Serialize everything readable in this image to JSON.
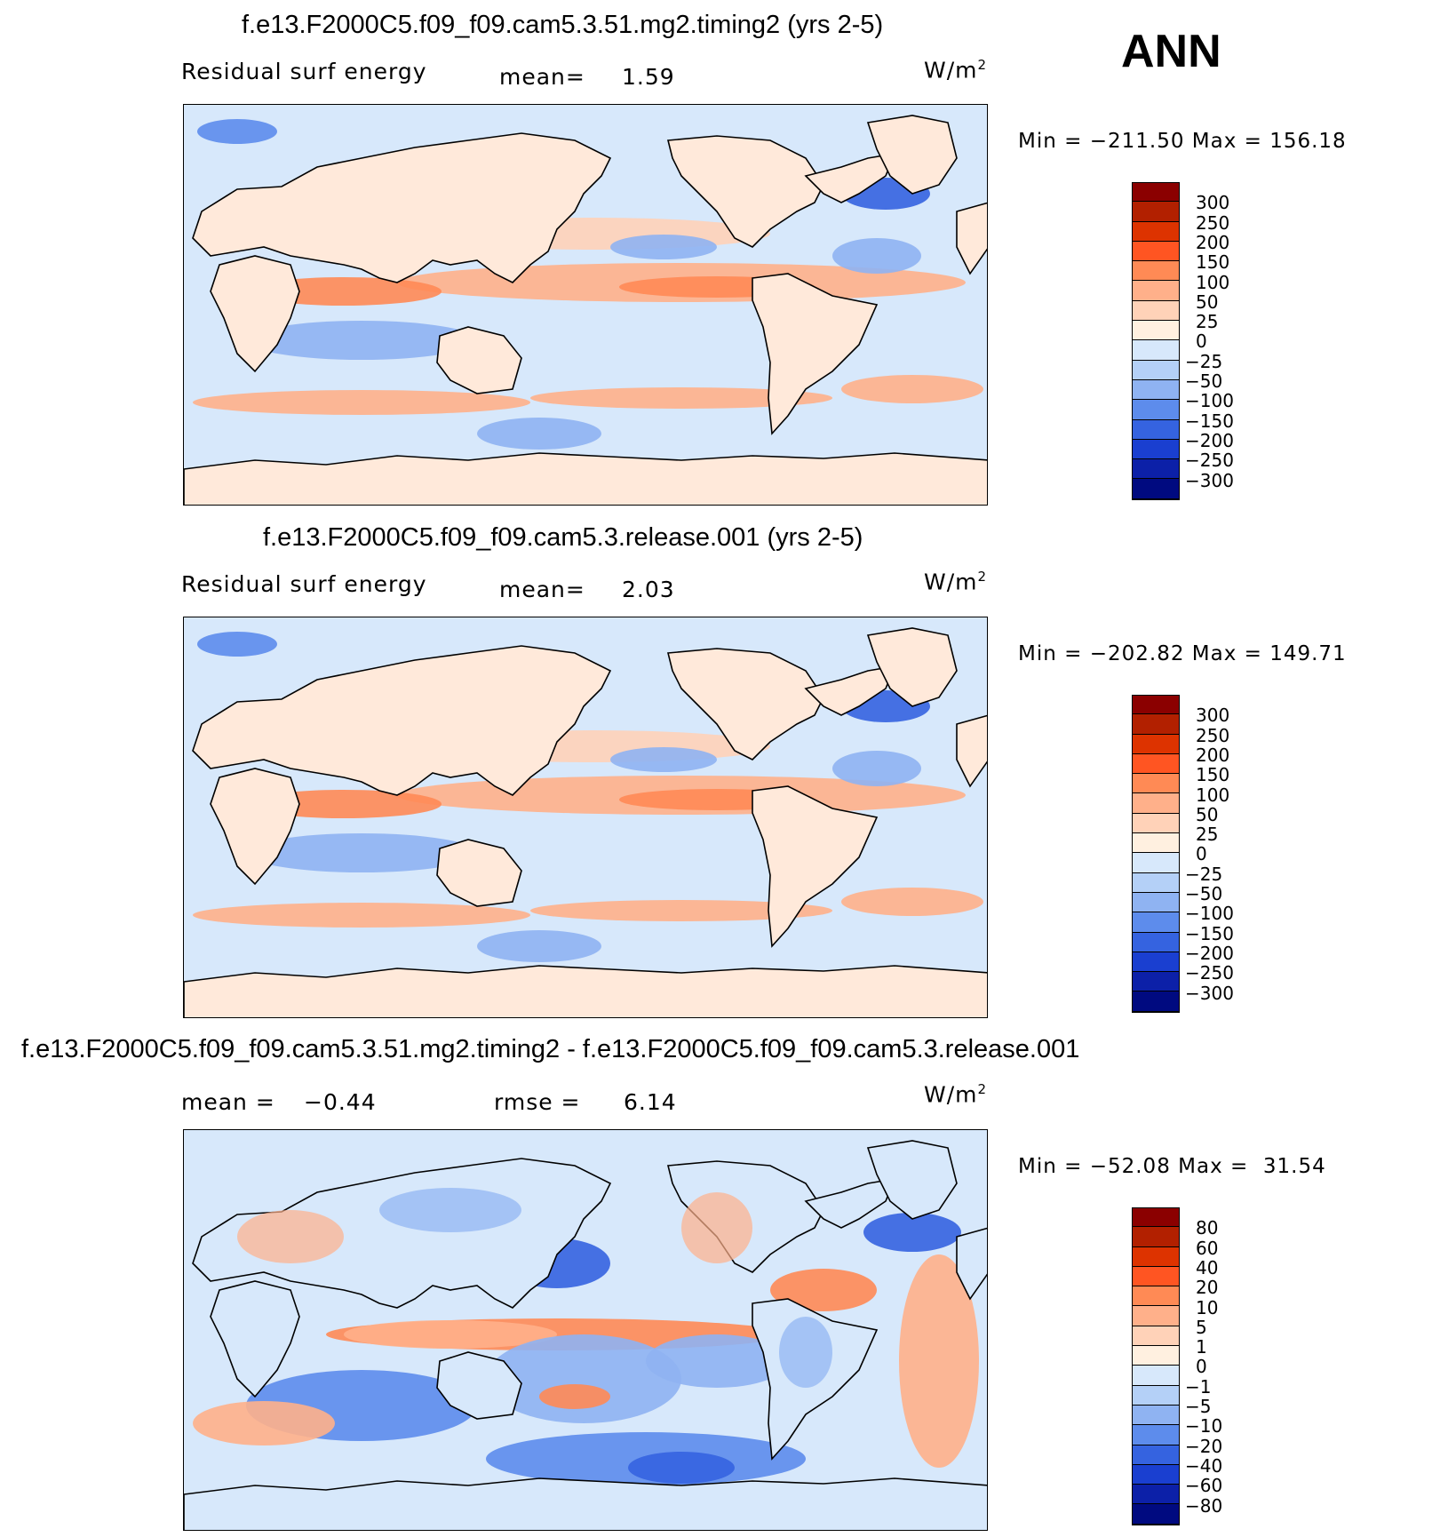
{
  "season": "ANN",
  "units_text": "W/m",
  "units_sup": "2",
  "panels": [
    {
      "id": "p1",
      "title": "f.e13.F2000C5.f09_f09.cam5.3.51.mg2.timing2 (yrs 2-5)",
      "left_label": "Residual surf energy",
      "stat_label": "mean=",
      "stat_value": "1.59",
      "minmax": "Min = −211.50 Max = 156.18",
      "scale": "abs"
    },
    {
      "id": "p2",
      "title": "f.e13.F2000C5.f09_f09.cam5.3.release.001 (yrs 2-5)",
      "left_label": "Residual surf energy",
      "stat_label": "mean=",
      "stat_value": "2.03",
      "minmax": "Min = −202.82 Max = 149.71",
      "scale": "abs"
    },
    {
      "id": "p3",
      "title": "f.e13.F2000C5.f09_f09.cam5.3.51.mg2.timing2 - f.e13.F2000C5.f09_f09.cam5.3.release.001",
      "mean_label": "mean =",
      "mean_value": "−0.44",
      "rmse_label": "rmse =",
      "rmse_value": "6.14",
      "minmax": "Min = −52.08 Max =  31.54",
      "scale": "diff"
    }
  ],
  "colorbars": {
    "abs": {
      "labels": [
        "300",
        "250",
        "200",
        "150",
        "100",
        "50",
        "25",
        "0",
        "−25",
        "−50",
        "−100",
        "−150",
        "−200",
        "−250",
        "−300"
      ],
      "colors": [
        "#8b0000",
        "#b22000",
        "#dd3300",
        "#ff5522",
        "#ff8a55",
        "#ffb08a",
        "#ffd2b8",
        "#fff0e0",
        "#d7e8fb",
        "#b4d0f7",
        "#8fb3f2",
        "#5d8cec",
        "#3563e0",
        "#1a3fd0",
        "#0c20a8",
        "#000a80"
      ]
    },
    "diff": {
      "labels": [
        "80",
        "60",
        "40",
        "20",
        "10",
        "5",
        "1",
        "0",
        "−1",
        "−5",
        "−10",
        "−20",
        "−40",
        "−60",
        "−80"
      ],
      "colors": [
        "#8b0000",
        "#b22000",
        "#dd3300",
        "#ff5522",
        "#ff8a55",
        "#ffb08a",
        "#ffd2b8",
        "#fff0e0",
        "#d7e8fb",
        "#b4d0f7",
        "#8fb3f2",
        "#5d8cec",
        "#3563e0",
        "#1a3fd0",
        "#0c20a8",
        "#000a80"
      ]
    }
  },
  "chart_data": [
    {
      "type": "heatmap",
      "title": "f.e13.F2000C5.f09_f09.cam5.3.51.mg2.timing2 (yrs 2-5)",
      "variable": "Residual surf energy",
      "units": "W/m2",
      "mean": 1.59,
      "min": -211.5,
      "max": 156.18,
      "levels": [
        -300,
        -250,
        -200,
        -150,
        -100,
        -50,
        -25,
        0,
        25,
        50,
        100,
        150,
        200,
        250,
        300
      ]
    },
    {
      "type": "heatmap",
      "title": "f.e13.F2000C5.f09_f09.cam5.3.release.001 (yrs 2-5)",
      "variable": "Residual surf energy",
      "units": "W/m2",
      "mean": 2.03,
      "min": -202.82,
      "max": 149.71,
      "levels": [
        -300,
        -250,
        -200,
        -150,
        -100,
        -50,
        -25,
        0,
        25,
        50,
        100,
        150,
        200,
        250,
        300
      ]
    },
    {
      "type": "heatmap",
      "title": "f.e13.F2000C5.f09_f09.cam5.3.51.mg2.timing2 - f.e13.F2000C5.f09_f09.cam5.3.release.001",
      "units": "W/m2",
      "mean": -0.44,
      "rmse": 6.14,
      "min": -52.08,
      "max": 31.54,
      "levels": [
        -80,
        -60,
        -40,
        -20,
        -10,
        -5,
        -1,
        0,
        1,
        5,
        10,
        20,
        40,
        60,
        80
      ]
    }
  ]
}
